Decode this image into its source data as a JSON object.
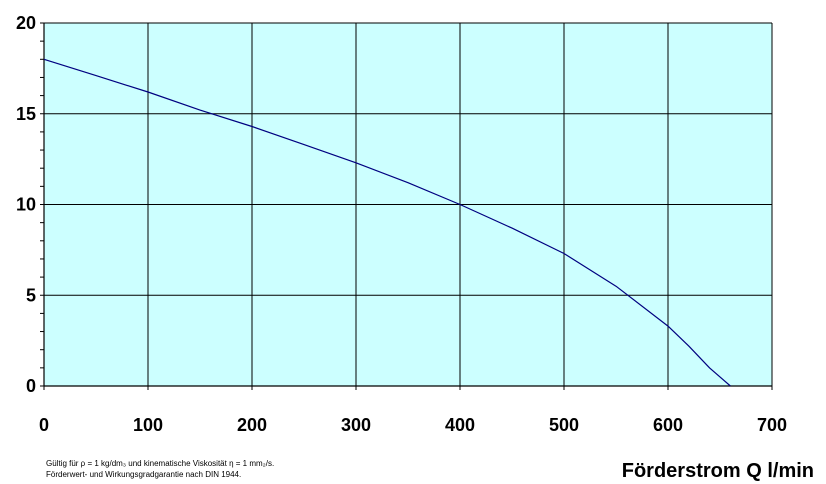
{
  "chart_data": {
    "type": "line",
    "title": "",
    "xlabel": "Förderstrom Q l/min",
    "ylabel": "",
    "xlim": [
      0,
      700
    ],
    "ylim": [
      0,
      20
    ],
    "xticks": [
      "0",
      "100",
      "200",
      "300",
      "400",
      "500",
      "600",
      "700"
    ],
    "yticks": [
      "0",
      "5",
      "10",
      "15",
      "20"
    ],
    "grid": true,
    "background_color": "#ccffff",
    "line_color": "#000080",
    "series": [
      {
        "x": [
          0,
          50,
          100,
          150,
          200,
          250,
          300,
          350,
          400,
          450,
          500,
          550,
          600,
          620,
          640,
          660
        ],
        "y": [
          18.0,
          17.1,
          16.2,
          15.2,
          14.3,
          13.3,
          12.3,
          11.2,
          10.0,
          8.7,
          7.3,
          5.5,
          3.3,
          2.2,
          1.0,
          0.0
        ]
      }
    ]
  },
  "notes": {
    "line1": "Gültig für ρ = 1 kg/dm₃ und kinematische Viskosität η = 1 mm₂/s.",
    "line2": "Förderwert- und Wirkungsgradgarantie nach DIN 1944."
  }
}
